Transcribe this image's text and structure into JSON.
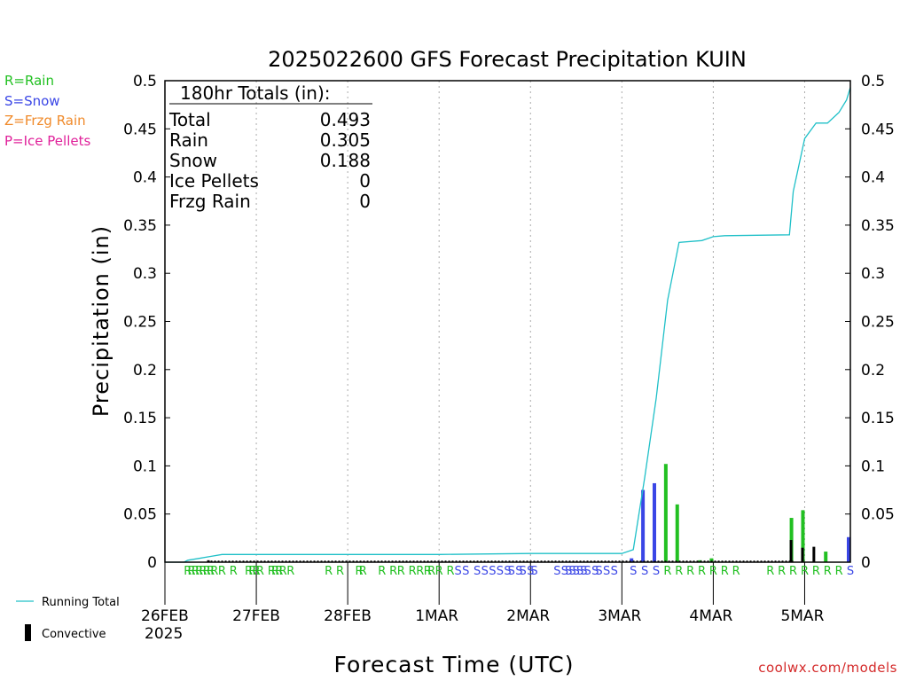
{
  "legend_types": [
    {
      "label": "R=Rain",
      "color": "#22c022"
    },
    {
      "label": "S=Snow",
      "color": "#3a46e6"
    },
    {
      "label": "Z=Frzg Rain",
      "color": "#f08a2a"
    },
    {
      "label": "P=Ice Pellets",
      "color": "#e0209a"
    }
  ],
  "bottom_legend": {
    "running_total": "Running Total",
    "convective": "Convective"
  },
  "footer": "coolwx.com/models",
  "totals": {
    "title": "180hr Totals (in):",
    "rows": [
      {
        "label": "Total",
        "value": "0.493"
      },
      {
        "label": "Rain",
        "value": "0.305"
      },
      {
        "label": "Snow",
        "value": "0.188"
      },
      {
        "label": "Ice Pellets",
        "value": "0"
      },
      {
        "label": "Frzg Rain",
        "value": "0"
      }
    ]
  },
  "chart_data": {
    "type": "bar",
    "title": "2025022600 GFS Forecast Precipitation KUIN",
    "xlabel": "Forecast Time (UTC)",
    "ylabel": "Precipitation (in)",
    "ylim": [
      0,
      0.5
    ],
    "xlim": [
      0,
      180
    ],
    "yticks": [
      "0",
      "0.05",
      "0.1",
      "0.15",
      "0.2",
      "0.25",
      "0.3",
      "0.35",
      "0.4",
      "0.45",
      "0.5"
    ],
    "xticks": [
      {
        "hour": 0,
        "label": "26FEB",
        "sub": "2025"
      },
      {
        "hour": 24,
        "label": "27FEB"
      },
      {
        "hour": 48,
        "label": "28FEB"
      },
      {
        "hour": 72,
        "label": "1MAR"
      },
      {
        "hour": 96,
        "label": "2MAR"
      },
      {
        "hour": 120,
        "label": "3MAR"
      },
      {
        "hour": 144,
        "label": "4MAR"
      },
      {
        "hour": 168,
        "label": "5MAR"
      }
    ],
    "grid": "vertical dotted at day boundaries",
    "series_colors": {
      "rain": "#22c022",
      "snow": "#3a46e6",
      "total": "#20c0c8",
      "convective": "#000000"
    },
    "bars": [
      {
        "hour": 123,
        "type": "snow",
        "value": 0.004
      },
      {
        "hour": 126,
        "type": "snow",
        "value": 0.075
      },
      {
        "hour": 129,
        "type": "snow",
        "value": 0.082
      },
      {
        "hour": 132,
        "type": "rain",
        "value": 0.102
      },
      {
        "hour": 135,
        "type": "rain",
        "value": 0.06
      },
      {
        "hour": 141,
        "type": "rain",
        "value": 0.002
      },
      {
        "hour": 144,
        "type": "rain",
        "value": 0.004
      },
      {
        "hour": 165,
        "type": "rain",
        "value": 0.046
      },
      {
        "hour": 168,
        "type": "rain",
        "value": 0.054
      },
      {
        "hour": 174,
        "type": "rain",
        "value": 0.011
      },
      {
        "hour": 180,
        "type": "snow",
        "value": 0.026
      }
    ],
    "convective": [
      {
        "hour": 165,
        "value": 0.023
      },
      {
        "hour": 168,
        "value": 0.015
      },
      {
        "hour": 171,
        "value": 0.016
      },
      {
        "hour": 12,
        "value": 0.002
      }
    ],
    "running_total": [
      [
        0,
        0
      ],
      [
        5,
        0
      ],
      [
        6,
        0.002
      ],
      [
        9,
        0.004
      ],
      [
        12,
        0.006
      ],
      [
        15,
        0.008
      ],
      [
        72,
        0.008
      ],
      [
        96,
        0.009
      ],
      [
        120,
        0.009
      ],
      [
        123,
        0.013
      ],
      [
        126,
        0.088
      ],
      [
        129,
        0.17
      ],
      [
        132,
        0.272
      ],
      [
        135,
        0.332
      ],
      [
        141,
        0.334
      ],
      [
        144,
        0.338
      ],
      [
        147,
        0.339
      ],
      [
        164,
        0.34
      ],
      [
        165,
        0.385
      ],
      [
        168,
        0.44
      ],
      [
        171,
        0.456
      ],
      [
        174,
        0.456
      ],
      [
        177,
        0.467
      ],
      [
        179,
        0.48
      ],
      [
        180,
        0.493
      ]
    ],
    "type_markers": [
      {
        "hour": 6,
        "type": "R"
      },
      {
        "hour": 7,
        "type": "R"
      },
      {
        "hour": 8,
        "type": "R"
      },
      {
        "hour": 9,
        "type": "R"
      },
      {
        "hour": 10,
        "type": "R"
      },
      {
        "hour": 11,
        "type": "R"
      },
      {
        "hour": 12,
        "type": "R"
      },
      {
        "hour": 13,
        "type": "R"
      },
      {
        "hour": 15,
        "type": "R"
      },
      {
        "hour": 18,
        "type": "R"
      },
      {
        "hour": 22,
        "type": "R"
      },
      {
        "hour": 23,
        "type": "R"
      },
      {
        "hour": 24,
        "type": "R"
      },
      {
        "hour": 25,
        "type": "R"
      },
      {
        "hour": 28,
        "type": "R"
      },
      {
        "hour": 29,
        "type": "R"
      },
      {
        "hour": 30,
        "type": "R"
      },
      {
        "hour": 31,
        "type": "R"
      },
      {
        "hour": 33,
        "type": "R"
      },
      {
        "hour": 43,
        "type": "R"
      },
      {
        "hour": 46,
        "type": "R"
      },
      {
        "hour": 51,
        "type": "R"
      },
      {
        "hour": 52,
        "type": "R"
      },
      {
        "hour": 57,
        "type": "R"
      },
      {
        "hour": 60,
        "type": "R"
      },
      {
        "hour": 62,
        "type": "R"
      },
      {
        "hour": 65,
        "type": "R"
      },
      {
        "hour": 67,
        "type": "R"
      },
      {
        "hour": 69,
        "type": "R"
      },
      {
        "hour": 70,
        "type": "R"
      },
      {
        "hour": 72,
        "type": "R"
      },
      {
        "hour": 75,
        "type": "R"
      },
      {
        "hour": 77,
        "type": "S"
      },
      {
        "hour": 79,
        "type": "S"
      },
      {
        "hour": 82,
        "type": "S"
      },
      {
        "hour": 84,
        "type": "S"
      },
      {
        "hour": 86,
        "type": "S"
      },
      {
        "hour": 88,
        "type": "S"
      },
      {
        "hour": 90,
        "type": "S"
      },
      {
        "hour": 91,
        "type": "S"
      },
      {
        "hour": 93,
        "type": "S"
      },
      {
        "hour": 94,
        "type": "S"
      },
      {
        "hour": 96,
        "type": "S"
      },
      {
        "hour": 97,
        "type": "S"
      },
      {
        "hour": 103,
        "type": "S"
      },
      {
        "hour": 105,
        "type": "S"
      },
      {
        "hour": 106,
        "type": "S"
      },
      {
        "hour": 107,
        "type": "S"
      },
      {
        "hour": 108,
        "type": "S"
      },
      {
        "hour": 109,
        "type": "S"
      },
      {
        "hour": 110,
        "type": "S"
      },
      {
        "hour": 111,
        "type": "S"
      },
      {
        "hour": 113,
        "type": "S"
      },
      {
        "hour": 114,
        "type": "S"
      },
      {
        "hour": 116,
        "type": "S"
      },
      {
        "hour": 118,
        "type": "S"
      },
      {
        "hour": 123,
        "type": "S"
      },
      {
        "hour": 126,
        "type": "S"
      },
      {
        "hour": 129,
        "type": "S"
      },
      {
        "hour": 132,
        "type": "R"
      },
      {
        "hour": 135,
        "type": "R"
      },
      {
        "hour": 138,
        "type": "R"
      },
      {
        "hour": 141,
        "type": "R"
      },
      {
        "hour": 144,
        "type": "R"
      },
      {
        "hour": 147,
        "type": "R"
      },
      {
        "hour": 150,
        "type": "R"
      },
      {
        "hour": 159,
        "type": "R"
      },
      {
        "hour": 162,
        "type": "R"
      },
      {
        "hour": 165,
        "type": "R"
      },
      {
        "hour": 168,
        "type": "R"
      },
      {
        "hour": 171,
        "type": "R"
      },
      {
        "hour": 174,
        "type": "R"
      },
      {
        "hour": 177,
        "type": "R"
      },
      {
        "hour": 180,
        "type": "S"
      }
    ]
  }
}
